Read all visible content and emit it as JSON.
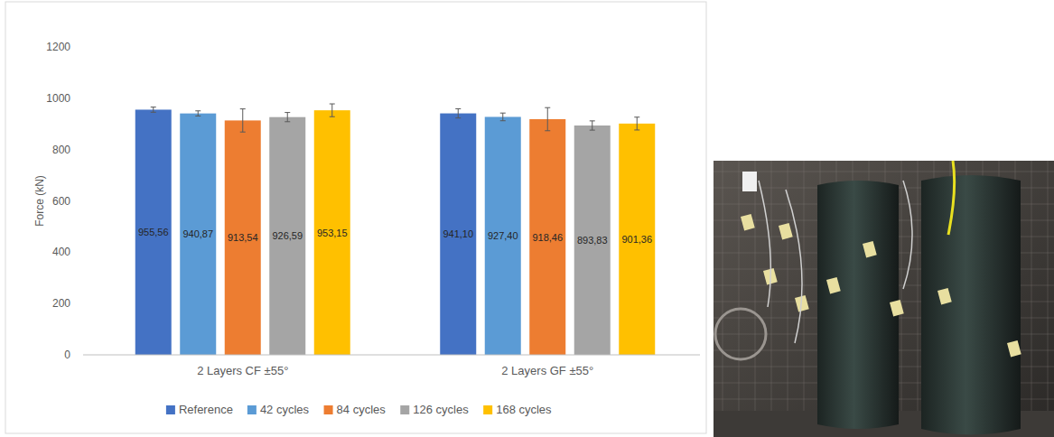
{
  "chart_data": {
    "type": "bar",
    "y_label": "Force (kN)",
    "categories": [
      "2 Layers CF ±55°",
      "2 Layers GF ±55°"
    ],
    "series": [
      {
        "name": "Reference",
        "color": "#4472c4",
        "values": [
          955.56,
          941.1
        ],
        "value_labels": [
          "955,56",
          "941,10"
        ],
        "errors": [
          10,
          18
        ]
      },
      {
        "name": "42 cycles",
        "color": "#5b9bd5",
        "values": [
          940.87,
          927.4
        ],
        "value_labels": [
          "940,87",
          "927,40"
        ],
        "errors": [
          10,
          15
        ]
      },
      {
        "name": "84 cycles",
        "color": "#ed7d31",
        "values": [
          913.54,
          918.46
        ],
        "value_labels": [
          "913,54",
          "918,46"
        ],
        "errors": [
          45,
          45
        ]
      },
      {
        "name": "126 cycles",
        "color": "#a5a5a5",
        "values": [
          926.59,
          893.83
        ],
        "value_labels": [
          "926,59",
          "893,83"
        ],
        "errors": [
          18,
          18
        ]
      },
      {
        "name": "168 cycles",
        "color": "#ffc000",
        "values": [
          953.15,
          901.36
        ],
        "value_labels": [
          "953,15",
          "901,36"
        ],
        "errors": [
          25,
          25
        ]
      }
    ],
    "ylim": [
      0,
      1200
    ],
    "yticks": [
      0,
      200,
      400,
      600,
      800,
      1000,
      1200
    ],
    "grid": false,
    "legend": "bottom",
    "data_labels": true
  }
}
